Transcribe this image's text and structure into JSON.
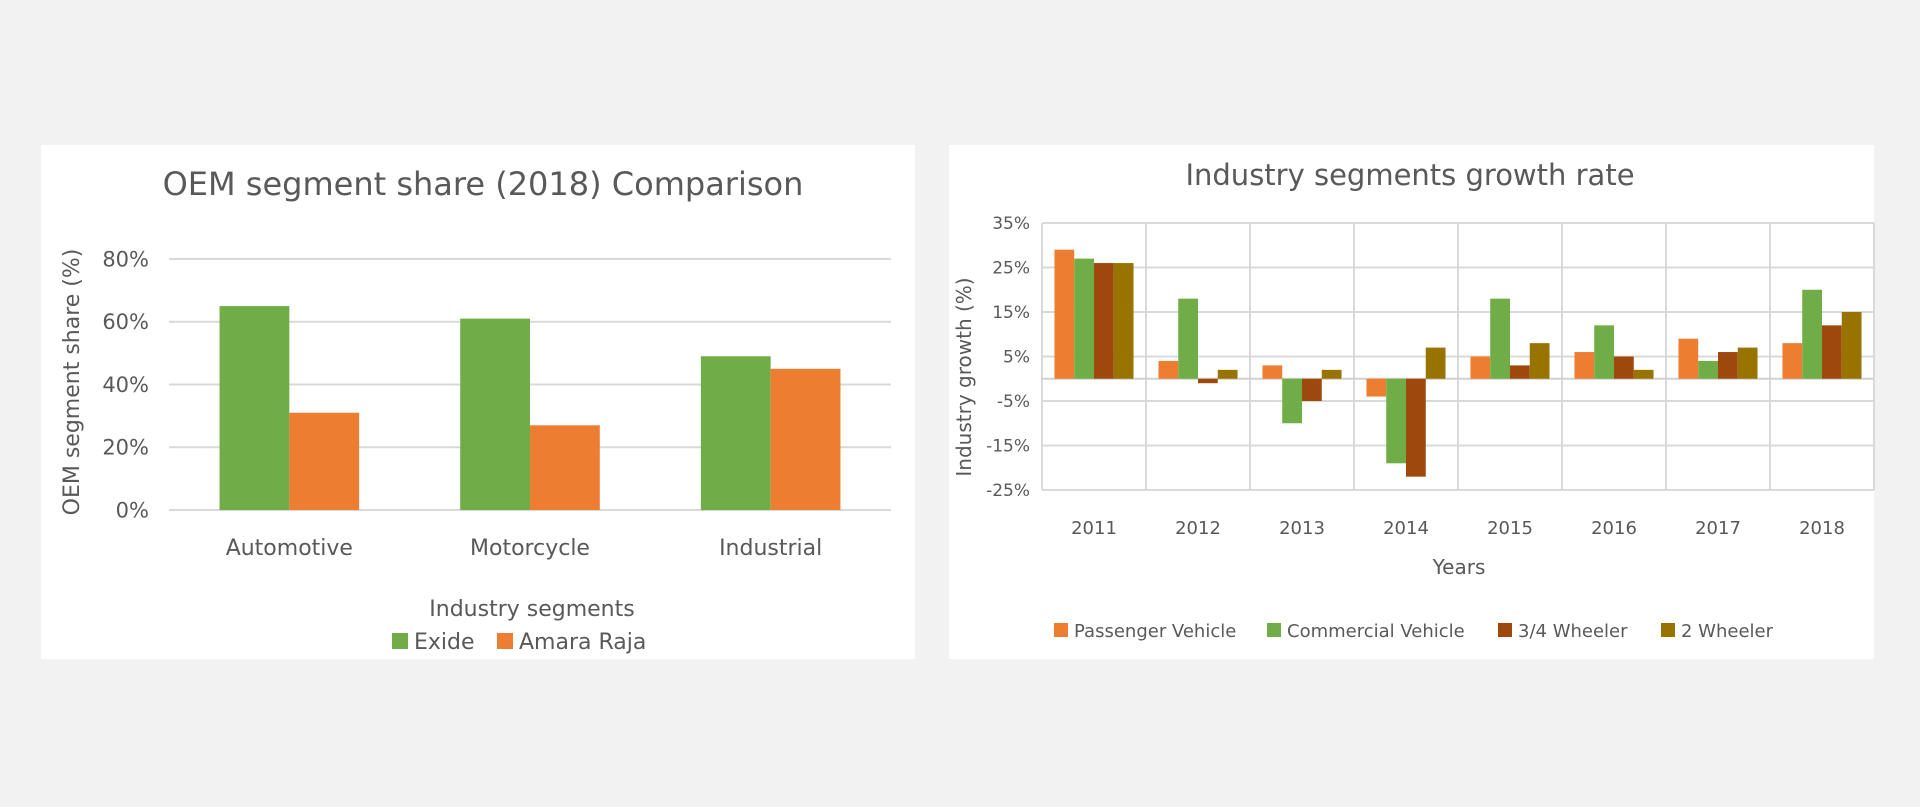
{
  "colors": {
    "exide": "#70ad47",
    "amara_raja": "#ed7d31",
    "passenger_vehicle": "#ed7d31",
    "commercial_vehicle": "#70ad47",
    "three_four_wheeler": "#9e480e",
    "two_wheeler": "#997300",
    "gridline": "#d9d9d9",
    "text": "#595959"
  },
  "chart_data": [
    {
      "type": "bar",
      "title": "OEM segment share (2018) Comparison",
      "xlabel": "Industry segments",
      "ylabel": "OEM segment share (%)",
      "categories": [
        "Automotive",
        "Motorcycle",
        "Industrial"
      ],
      "ylim": [
        0,
        80
      ],
      "yticks": [
        0,
        20,
        40,
        60,
        80
      ],
      "ytick_labels": [
        "0%",
        "20%",
        "40%",
        "60%",
        "80%"
      ],
      "grid": true,
      "legend": "bottom",
      "series": [
        {
          "name": "Exide",
          "color": "#70ad47",
          "values": [
            65,
            61,
            49
          ]
        },
        {
          "name": "Amara Raja",
          "color": "#ed7d31",
          "values": [
            31,
            27,
            45
          ]
        }
      ]
    },
    {
      "type": "bar",
      "title": "Industry segments growth rate",
      "xlabel": "Years",
      "ylabel": "Industry growth (%)",
      "categories": [
        "2011",
        "2012",
        "2013",
        "2014",
        "2015",
        "2016",
        "2017",
        "2018"
      ],
      "ylim": [
        -25,
        35
      ],
      "yticks": [
        -25,
        -15,
        -5,
        5,
        15,
        25,
        35
      ],
      "ytick_labels": [
        "-25%",
        "-15%",
        "-5%",
        "5%",
        "15%",
        "25%",
        "35%"
      ],
      "grid": true,
      "legend": "bottom",
      "series": [
        {
          "name": "Passenger Vehicle",
          "color": "#ed7d31",
          "values": [
            29,
            4,
            3,
            -4,
            5,
            6,
            9,
            8
          ]
        },
        {
          "name": "Commercial Vehicle",
          "color": "#70ad47",
          "values": [
            27,
            18,
            -10,
            -19,
            18,
            12,
            4,
            20
          ]
        },
        {
          "name": "3/4 Wheeler",
          "color": "#9e480e",
          "values": [
            26,
            -1,
            -5,
            -22,
            3,
            5,
            6,
            12
          ]
        },
        {
          "name": "2 Wheeler",
          "color": "#997300",
          "values": [
            26,
            2,
            2,
            7,
            8,
            2,
            7,
            15
          ]
        }
      ]
    }
  ]
}
